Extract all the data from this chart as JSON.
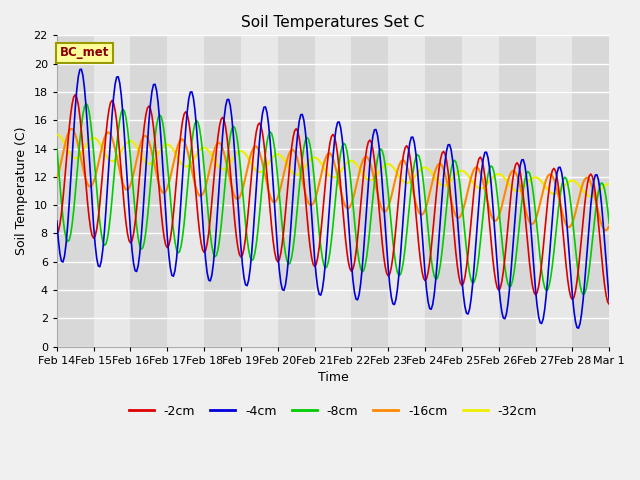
{
  "title": "Soil Temperatures Set C",
  "xlabel": "Time",
  "ylabel": "Soil Temperature (C)",
  "ylim": [
    0,
    22
  ],
  "yticks": [
    0,
    2,
    4,
    6,
    8,
    10,
    12,
    14,
    16,
    18,
    20,
    22
  ],
  "annotation": "BC_met",
  "series_colors": {
    "-2cm": "#dd0000",
    "-4cm": "#0000dd",
    "-8cm": "#00cc00",
    "-16cm": "#ff8800",
    "-32cm": "#eeee00"
  },
  "xtick_labels": [
    "Feb 14",
    "Feb 15",
    "Feb 16",
    "Feb 17",
    "Feb 18",
    "Feb 19",
    "Feb 20",
    "Feb 21",
    "Feb 22",
    "Feb 23",
    "Feb 24",
    "Feb 25",
    "Feb 26",
    "Feb 27",
    "Feb 28",
    "Mar 1"
  ],
  "legend_colors": [
    "#dd0000",
    "#0000dd",
    "#00cc00",
    "#ff8800",
    "#eeee00"
  ],
  "legend_labels": [
    "-2cm",
    "-4cm",
    "-8cm",
    "-16cm",
    "-32cm"
  ]
}
